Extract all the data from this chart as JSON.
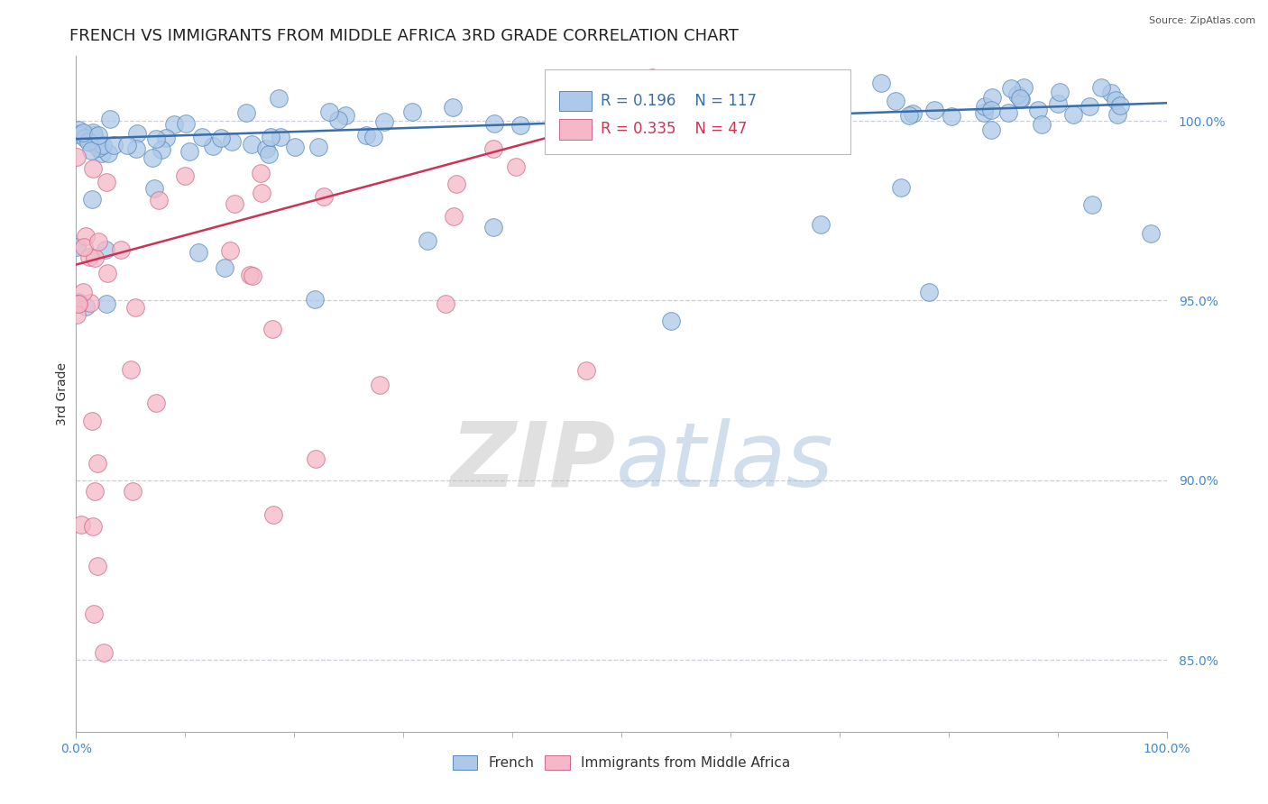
{
  "title": "FRENCH VS IMMIGRANTS FROM MIDDLE AFRICA 3RD GRADE CORRELATION CHART",
  "source": "Source: ZipAtlas.com",
  "ylabel": "3rd Grade",
  "xlim": [
    0.0,
    100.0
  ],
  "ylim": [
    83.0,
    101.8
  ],
  "yticks": [
    85.0,
    90.0,
    95.0,
    100.0
  ],
  "ytick_labels": [
    "85.0%",
    "90.0%",
    "95.0%",
    "100.0%"
  ],
  "blue_R": 0.196,
  "blue_N": 117,
  "pink_R": 0.335,
  "pink_N": 47,
  "blue_color": "#adc8e8",
  "blue_edge_color": "#5588bb",
  "blue_line_color": "#3a6ea8",
  "pink_color": "#f5b8c8",
  "pink_edge_color": "#cc6688",
  "pink_line_color": "#cc3355",
  "legend_blue_label": "French",
  "legend_pink_label": "Immigrants from Middle Africa",
  "watermark_zip_color": "#c8c8c8",
  "watermark_atlas_color": "#a8c0e0",
  "title_fontsize": 13,
  "axis_label_fontsize": 10,
  "tick_fontsize": 10,
  "legend_fontsize": 11,
  "background_color": "#ffffff",
  "grid_color": "#c8c8d8",
  "ytick_color": "#4488cc",
  "xtick_color": "#4488cc",
  "blue_trend_x0": 0,
  "blue_trend_y0": 99.5,
  "blue_trend_x1": 100,
  "blue_trend_y1": 100.5,
  "pink_trend_x0": 0,
  "pink_trend_y0": 96.0,
  "pink_trend_x1": 55,
  "pink_trend_y1": 100.5
}
